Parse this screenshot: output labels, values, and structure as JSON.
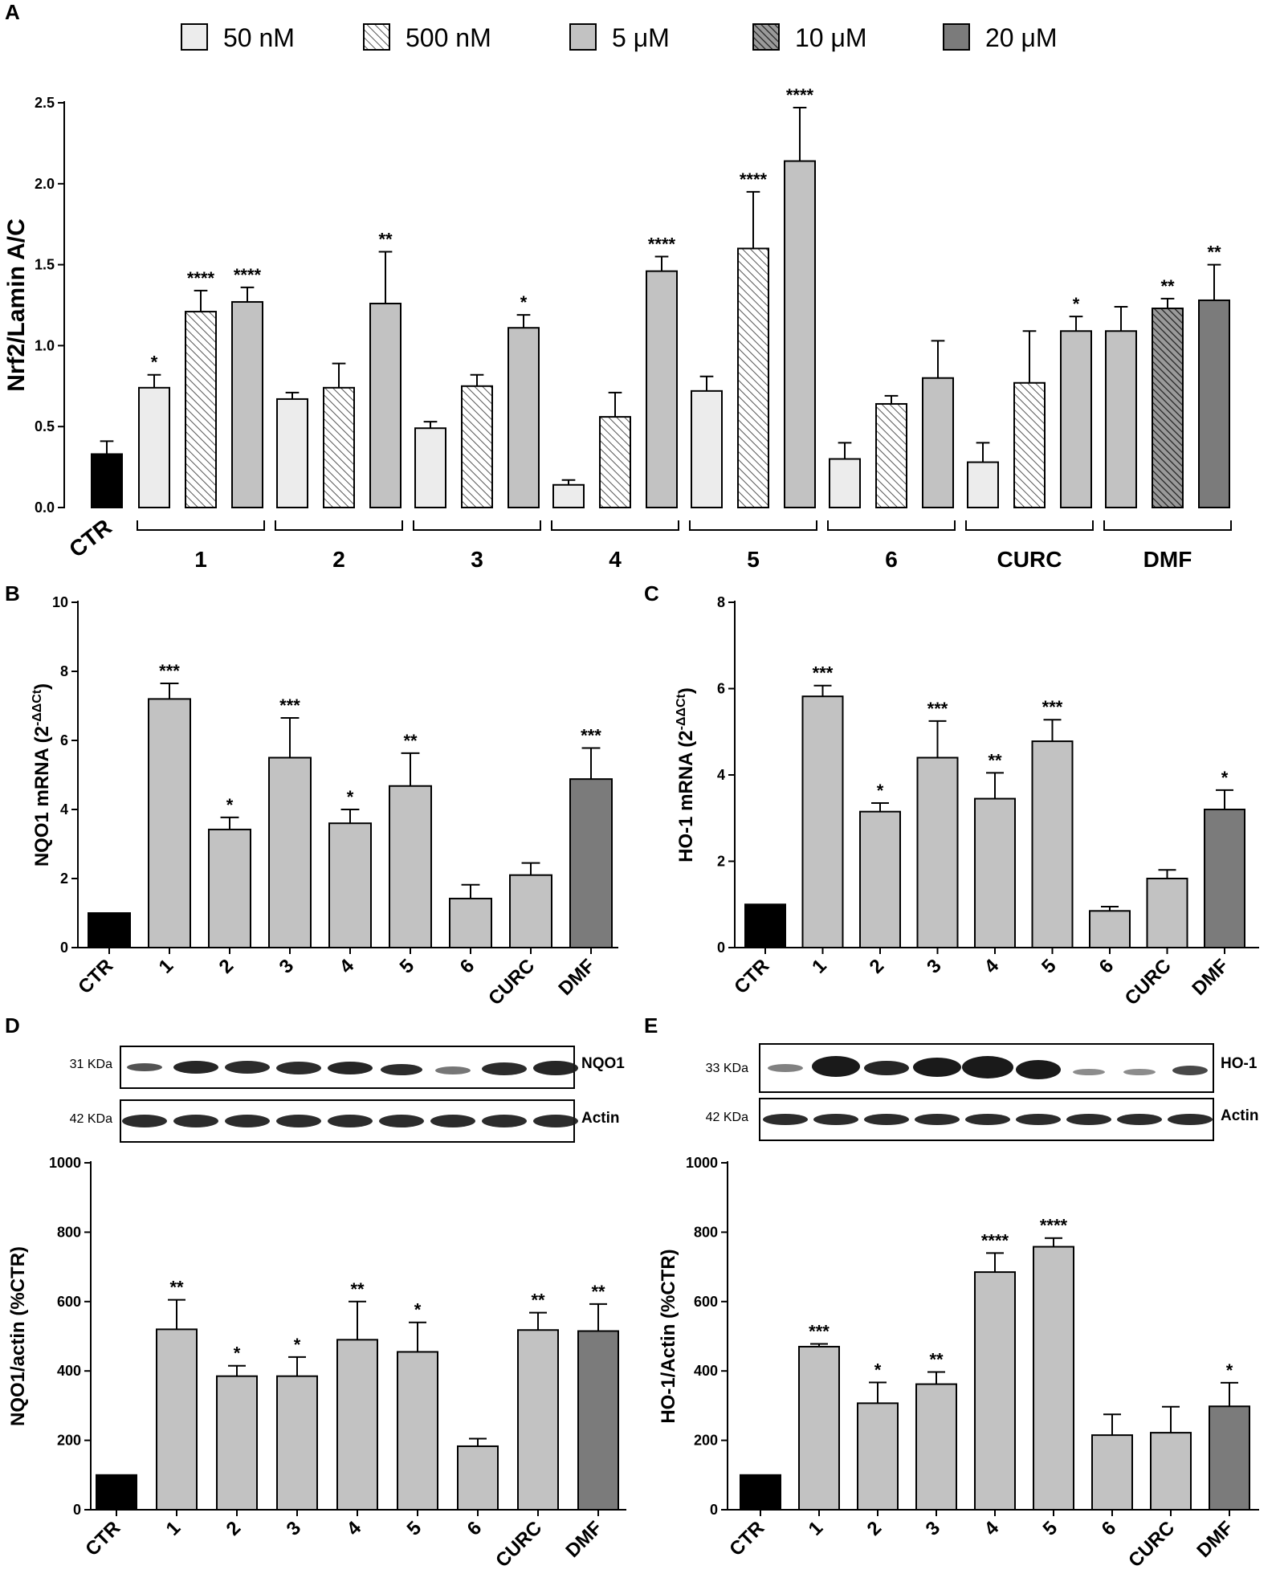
{
  "figure": {
    "panels": [
      "A",
      "B",
      "C",
      "D",
      "E"
    ]
  },
  "legend": {
    "items": [
      {
        "label": "50 nM",
        "style": "light"
      },
      {
        "label": "500 nM",
        "style": "hatch-light"
      },
      {
        "label": "5 μM",
        "style": "mid"
      },
      {
        "label": "10 μM",
        "style": "hatch-dark"
      },
      {
        "label": "20 μM",
        "style": "dark"
      }
    ]
  },
  "colors": {
    "ctr": "#000000",
    "light": "#ececec",
    "mid": "#c2c2c2",
    "dark": "#7b7b7b",
    "hatch_light_bg": "#ffffff",
    "hatch_light_line": "#555555",
    "hatch_dark_bg": "#9a9a9a",
    "hatch_dark_line": "#222222"
  },
  "blots": {
    "D": {
      "rows": [
        {
          "kda": "31 KDa",
          "name": "NQO1"
        },
        {
          "kda": "42 KDa",
          "name": "Actin"
        }
      ]
    },
    "E": {
      "rows": [
        {
          "kda": "33 KDa",
          "name": "HO-1"
        },
        {
          "kda": "42 KDa",
          "name": "Actin"
        }
      ]
    }
  },
  "chart_data": [
    {
      "id": "A",
      "type": "bar",
      "ylabel": "Nrf2/Lamin A/C",
      "ylim": [
        0,
        2.5
      ],
      "yticks": [
        0.0,
        0.5,
        1.0,
        1.5,
        2.0,
        2.5
      ],
      "ytick_labels": [
        "0.0",
        "0.5",
        "1.0",
        "1.5",
        "2.0",
        "2.5"
      ],
      "ctr": {
        "label": "CTR",
        "value": 0.33,
        "error": 0.08,
        "sig": ""
      },
      "groups": [
        {
          "label": "1",
          "bars": [
            {
              "conc": "50 nM",
              "value": 0.74,
              "error": 0.08,
              "sig": "*"
            },
            {
              "conc": "500 nM",
              "value": 1.21,
              "error": 0.13,
              "sig": "****"
            },
            {
              "conc": "5 μM",
              "value": 1.27,
              "error": 0.09,
              "sig": "****"
            }
          ]
        },
        {
          "label": "2",
          "bars": [
            {
              "conc": "50 nM",
              "value": 0.67,
              "error": 0.04,
              "sig": ""
            },
            {
              "conc": "500 nM",
              "value": 0.74,
              "error": 0.15,
              "sig": ""
            },
            {
              "conc": "5 μM",
              "value": 1.26,
              "error": 0.32,
              "sig": "**"
            }
          ]
        },
        {
          "label": "3",
          "bars": [
            {
              "conc": "50 nM",
              "value": 0.49,
              "error": 0.04,
              "sig": ""
            },
            {
              "conc": "500 nM",
              "value": 0.75,
              "error": 0.07,
              "sig": ""
            },
            {
              "conc": "5 μM",
              "value": 1.11,
              "error": 0.08,
              "sig": "*"
            }
          ]
        },
        {
          "label": "4",
          "bars": [
            {
              "conc": "50 nM",
              "value": 0.14,
              "error": 0.03,
              "sig": ""
            },
            {
              "conc": "500 nM",
              "value": 0.56,
              "error": 0.15,
              "sig": ""
            },
            {
              "conc": "5 μM",
              "value": 1.46,
              "error": 0.09,
              "sig": "****"
            }
          ]
        },
        {
          "label": "5",
          "bars": [
            {
              "conc": "50 nM",
              "value": 0.72,
              "error": 0.09,
              "sig": ""
            },
            {
              "conc": "500 nM",
              "value": 1.6,
              "error": 0.35,
              "sig": "****"
            },
            {
              "conc": "5 μM",
              "value": 2.14,
              "error": 0.33,
              "sig": "****"
            }
          ]
        },
        {
          "label": "6",
          "bars": [
            {
              "conc": "50 nM",
              "value": 0.3,
              "error": 0.1,
              "sig": ""
            },
            {
              "conc": "500 nM",
              "value": 0.64,
              "error": 0.05,
              "sig": ""
            },
            {
              "conc": "5 μM",
              "value": 0.8,
              "error": 0.23,
              "sig": ""
            }
          ]
        },
        {
          "label": "CURC",
          "bars": [
            {
              "conc": "50 nM",
              "value": 0.28,
              "error": 0.12,
              "sig": ""
            },
            {
              "conc": "500 nM",
              "value": 0.77,
              "error": 0.32,
              "sig": ""
            },
            {
              "conc": "5 μM",
              "value": 1.09,
              "error": 0.09,
              "sig": "*"
            }
          ]
        },
        {
          "label": "DMF",
          "bars": [
            {
              "conc": "5 μM",
              "value": 1.09,
              "error": 0.15,
              "sig": ""
            },
            {
              "conc": "10 μM",
              "value": 1.23,
              "error": 0.06,
              "sig": "**"
            },
            {
              "conc": "20 μM",
              "value": 1.28,
              "error": 0.22,
              "sig": "**"
            }
          ]
        }
      ]
    },
    {
      "id": "B",
      "type": "bar",
      "ylabel": "NQO1 mRNA (2",
      "ylabel_sup": "-ΔΔCt",
      "ylabel_end": ")",
      "ylim": [
        0,
        10
      ],
      "yticks": [
        0,
        2,
        4,
        6,
        8,
        10
      ],
      "ytick_labels": [
        "0",
        "2",
        "4",
        "6",
        "8",
        "10"
      ],
      "categories": [
        "CTR",
        "1",
        "2",
        "3",
        "4",
        "5",
        "6",
        "CURC",
        "DMF"
      ],
      "values": [
        1.0,
        7.2,
        3.42,
        5.5,
        3.6,
        4.68,
        1.42,
        2.1,
        4.88
      ],
      "errors": [
        0,
        0.45,
        0.35,
        1.15,
        0.4,
        0.95,
        0.4,
        0.35,
        0.9
      ],
      "sig": [
        "",
        "***",
        "*",
        "***",
        "*",
        "**",
        "",
        "",
        "***"
      ],
      "fills": [
        "ctr",
        "mid",
        "mid",
        "mid",
        "mid",
        "mid",
        "mid",
        "mid",
        "dark"
      ]
    },
    {
      "id": "C",
      "type": "bar",
      "ylabel": "HO-1 mRNA (2",
      "ylabel_sup": "-ΔΔCt",
      "ylabel_end": ")",
      "ylim": [
        0,
        8
      ],
      "yticks": [
        0,
        2,
        4,
        6,
        8
      ],
      "ytick_labels": [
        "0",
        "2",
        "4",
        "6",
        "8"
      ],
      "categories": [
        "CTR",
        "1",
        "2",
        "3",
        "4",
        "5",
        "6",
        "CURC",
        "DMF"
      ],
      "values": [
        1.0,
        5.82,
        3.15,
        4.4,
        3.45,
        4.78,
        0.85,
        1.6,
        3.2
      ],
      "errors": [
        0,
        0.25,
        0.2,
        0.85,
        0.6,
        0.5,
        0.1,
        0.2,
        0.45
      ],
      "sig": [
        "",
        "***",
        "*",
        "***",
        "**",
        "***",
        "",
        "",
        "*"
      ],
      "fills": [
        "ctr",
        "mid",
        "mid",
        "mid",
        "mid",
        "mid",
        "mid",
        "mid",
        "dark"
      ]
    },
    {
      "id": "D",
      "type": "bar",
      "ylabel": "NQO1/actin (%CTR)",
      "ylim": [
        0,
        1000
      ],
      "yticks": [
        0,
        200,
        400,
        600,
        800,
        1000
      ],
      "ytick_labels": [
        "0",
        "200",
        "400",
        "600",
        "800",
        "1000"
      ],
      "categories": [
        "CTR",
        "1",
        "2",
        "3",
        "4",
        "5",
        "6",
        "CURC",
        "DMF"
      ],
      "values": [
        100,
        520,
        385,
        385,
        490,
        455,
        183,
        518,
        515
      ],
      "errors": [
        0,
        85,
        30,
        55,
        110,
        85,
        22,
        50,
        78
      ],
      "sig": [
        "",
        "**",
        "*",
        "*",
        "**",
        "*",
        "",
        "**",
        "**"
      ],
      "fills": [
        "ctr",
        "mid",
        "mid",
        "mid",
        "mid",
        "mid",
        "mid",
        "mid",
        "dark"
      ]
    },
    {
      "id": "E",
      "type": "bar",
      "ylabel": "HO-1/Actin (%CTR)",
      "ylim": [
        0,
        1000
      ],
      "yticks": [
        0,
        200,
        400,
        600,
        800,
        1000
      ],
      "ytick_labels": [
        "0",
        "200",
        "400",
        "600",
        "800",
        "1000"
      ],
      "categories": [
        "CTR",
        "1",
        "2",
        "3",
        "4",
        "5",
        "6",
        "CURC",
        "DMF"
      ],
      "values": [
        100,
        470,
        307,
        362,
        685,
        758,
        215,
        222,
        298
      ],
      "errors": [
        0,
        8,
        60,
        35,
        55,
        25,
        60,
        75,
        68
      ],
      "sig": [
        "",
        "***",
        "*",
        "**",
        "****",
        "****",
        "",
        "",
        "*"
      ],
      "fills": [
        "ctr",
        "mid",
        "mid",
        "mid",
        "mid",
        "mid",
        "mid",
        "mid",
        "dark"
      ]
    }
  ]
}
